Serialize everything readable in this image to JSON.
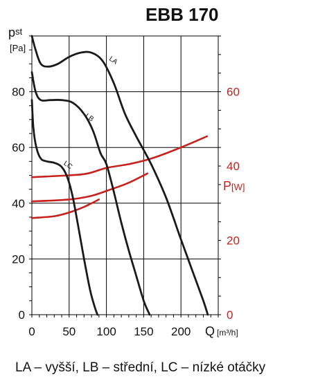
{
  "title": "EBB 170",
  "caption": "LA – vyšší, LB – střední, LC – nízké otáčky",
  "colors": {
    "pressure": "#1a1a1a",
    "power": "#c8201b",
    "grid": "#000000"
  },
  "chart_data": {
    "type": "line",
    "title": "EBB 170",
    "xlabel": "Q",
    "xlabel_unit": "[m³/h]",
    "ylabel_main": "p",
    "ylabel_sub": "st",
    "ylabel_unit": "[Pa]",
    "ylabel2_main": "P",
    "ylabel2_unit": "[W]",
    "xlim": [
      0,
      250
    ],
    "ylim": [
      0,
      100
    ],
    "y2lim": [
      0,
      75
    ],
    "x_ticks": [
      0,
      50,
      100,
      150,
      200,
      250
    ],
    "x_tick_labels": [
      "0",
      "50",
      "100",
      "150",
      "200"
    ],
    "y_ticks": [
      0,
      20,
      40,
      60,
      80,
      100
    ],
    "y_tick_labels": [
      "0",
      "20",
      "40",
      "60",
      "80"
    ],
    "y2_ticks": [
      0,
      20,
      40,
      60
    ],
    "y2_tick_labels": [
      "0",
      "20",
      "40",
      "60"
    ],
    "grid": true,
    "pressure_series": [
      {
        "name": "LA",
        "x": [
          0,
          5,
          12,
          22,
          35,
          50,
          65,
          80,
          95,
          110,
          125,
          140,
          160,
          180,
          200,
          215,
          230,
          236
        ],
        "y": [
          100,
          95,
          90,
          89,
          90,
          92.5,
          94,
          94,
          91,
          83,
          72,
          64,
          54,
          42,
          27,
          16,
          5,
          0
        ]
      },
      {
        "name": "LB",
        "x": [
          0,
          5,
          12,
          25,
          40,
          55,
          70,
          82,
          92,
          100,
          110,
          120,
          130,
          140,
          150,
          158
        ],
        "y": [
          87,
          80,
          77,
          77,
          77,
          76,
          72,
          66,
          58,
          54,
          44,
          33,
          23,
          14,
          5,
          0
        ]
      },
      {
        "name": "LC",
        "x": [
          0,
          2,
          6,
          12,
          20,
          30,
          40,
          48,
          55,
          62,
          70,
          78,
          84,
          88
        ],
        "y": [
          77,
          67,
          60,
          56,
          55,
          54.5,
          53,
          49,
          42,
          32,
          20,
          9,
          3,
          0
        ]
      }
    ],
    "power_series": [
      {
        "name": "LA",
        "x": [
          0,
          50,
          75,
          100,
          130,
          160,
          200,
          235
        ],
        "y": [
          37,
          37.5,
          38,
          39.5,
          40.5,
          42,
          45,
          48
        ]
      },
      {
        "name": "LB",
        "x": [
          0,
          50,
          80,
          110,
          130,
          155
        ],
        "y": [
          30.5,
          31,
          32,
          34,
          35.5,
          38
        ]
      },
      {
        "name": "LC",
        "x": [
          0,
          30,
          50,
          70,
          90
        ],
        "y": [
          26,
          26.5,
          27.5,
          29,
          31
        ]
      }
    ],
    "curve_labels": [
      {
        "text": "LA",
        "x": 103,
        "y": 91.5
      },
      {
        "text": "LB",
        "x": 71,
        "y": 71
      },
      {
        "text": "LC",
        "x": 42,
        "y": 54
      }
    ]
  }
}
